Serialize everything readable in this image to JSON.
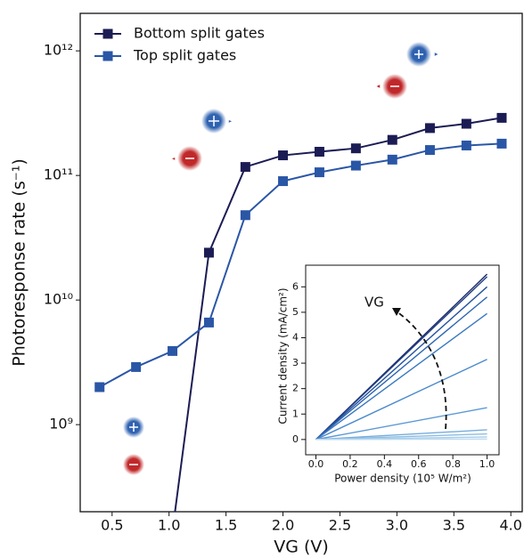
{
  "chart_data": [
    {
      "type": "line",
      "log_y": true,
      "xlabel": "VG (V)",
      "ylabel": "Photoresponse rate (s⁻¹)",
      "x": [
        0.39,
        0.71,
        1.03,
        1.35,
        1.67,
        2.0,
        2.32,
        2.64,
        2.96,
        3.29,
        3.61,
        3.92
      ],
      "series": [
        {
          "name": "Bottom split gates",
          "color": "#1c1c55",
          "values": [
            null,
            null,
            140000000.0,
            24000000000.0,
            117000000000.0,
            145000000000.0,
            155000000000.0,
            165000000000.0,
            193000000000.0,
            240000000000.0,
            260000000000.0,
            290000000000.0
          ]
        },
        {
          "name": "Top split gates",
          "color": "#2a56a6",
          "values": [
            2000000000.0,
            2900000000.0,
            3900000000.0,
            6600000000.0,
            48000000000.0,
            90000000000.0,
            106000000000.0,
            120000000000.0,
            134000000000.0,
            160000000000.0,
            174000000000.0,
            180000000000.0
          ]
        }
      ],
      "marker": "square",
      "legend": "upper left",
      "xlim": [
        0.22,
        4.1
      ],
      "ylim": [
        200000000.0,
        2000000000000.0
      ],
      "xticks": [
        0.5,
        {
          "value": 1,
          "label": "1.0"
        },
        1.5,
        {
          "value": 2,
          "label": "2.0"
        },
        2.5,
        {
          "value": 3,
          "label": "3.0"
        },
        3.5,
        {
          "value": 4,
          "label": "4.0"
        }
      ],
      "yticks": [
        {
          "value": 1000000000.0,
          "label": "10⁹"
        },
        {
          "value": 10000000000.0,
          "label": "10¹⁰"
        },
        {
          "value": 100000000000.0,
          "label": "10¹¹"
        },
        {
          "value": 1000000000000.0,
          "label": "10¹²"
        }
      ]
    },
    {
      "type": "line",
      "xlabel": "Power density (10⁵ W/m²)",
      "ylabel": "Current density (mA/cm²)",
      "annotation": "VG",
      "x": [
        0,
        1
      ],
      "series": [
        {
          "color": "#1c2a66",
          "values": [
            0,
            6.5
          ]
        },
        {
          "color": "#1f3f86",
          "values": [
            0,
            6.4
          ]
        },
        {
          "color": "#24529e",
          "values": [
            0,
            6.0
          ]
        },
        {
          "color": "#2c64b0",
          "values": [
            0,
            5.6
          ]
        },
        {
          "color": "#3a78c0",
          "values": [
            0,
            4.95
          ]
        },
        {
          "color": "#4a89cb",
          "values": [
            0,
            3.15
          ]
        },
        {
          "color": "#5c99d3",
          "values": [
            0,
            1.25
          ]
        },
        {
          "color": "#77addc",
          "values": [
            0,
            0.38
          ]
        },
        {
          "color": "#8dbde3",
          "values": [
            0,
            0.22
          ]
        },
        {
          "color": "#a6cdea",
          "values": [
            0,
            0.1
          ]
        },
        {
          "color": "#bcdaf0",
          "values": [
            0,
            0.02
          ]
        }
      ],
      "xlim": [
        -0.06,
        1.07
      ],
      "ylim": [
        -0.6,
        6.85
      ],
      "xticks": [
        {
          "value": 0,
          "label": "0.0"
        },
        0.2,
        0.4,
        0.6,
        0.8,
        {
          "value": 1,
          "label": "1.0"
        }
      ],
      "yticks": [
        0,
        1,
        2,
        3,
        4,
        5,
        6
      ]
    }
  ]
}
